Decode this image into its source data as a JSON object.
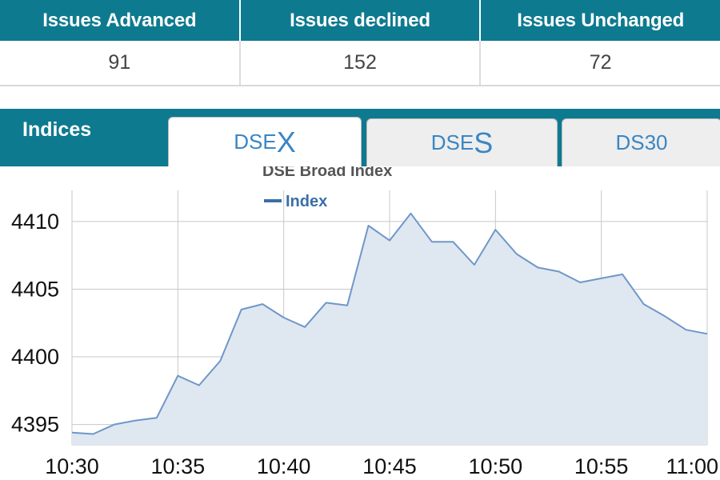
{
  "issues": {
    "headers": [
      "Issues Advanced",
      "Issues declined",
      "Issues Unchanged"
    ],
    "values": [
      "91",
      "152",
      "72"
    ]
  },
  "indices": {
    "title": "Indices",
    "tabs": [
      {
        "prefix": "DSE",
        "suffix": "X",
        "active": true
      },
      {
        "prefix": "DSE",
        "suffix": "S",
        "active": false
      },
      {
        "prefix": "DS30",
        "suffix": "",
        "active": false
      }
    ]
  },
  "colors": {
    "header_bg": "#0e7a8f",
    "line": "#6f97c8",
    "area": "#dfe7f1",
    "tab_text": "#3a86c4"
  },
  "chart_data": {
    "type": "area",
    "title": "DSE Broad Index",
    "series": [
      {
        "name": "Index",
        "x": [
          "10:30",
          "10:31",
          "10:32",
          "10:33",
          "10:34",
          "10:35",
          "10:36",
          "10:37",
          "10:38",
          "10:39",
          "10:40",
          "10:41",
          "10:42",
          "10:43",
          "10:44",
          "10:45",
          "10:46",
          "10:47",
          "10:48",
          "10:49",
          "10:50",
          "10:51",
          "10:52",
          "10:53",
          "10:54",
          "10:55",
          "10:56",
          "10:57",
          "10:58",
          "10:59",
          "11:00"
        ],
        "values": [
          4394.4,
          4394.3,
          4395.0,
          4395.3,
          4395.5,
          4398.6,
          4397.9,
          4399.7,
          4403.5,
          4403.9,
          4402.9,
          4402.2,
          4404.0,
          4403.8,
          4409.7,
          4408.6,
          4410.6,
          4408.5,
          4408.5,
          4406.8,
          4409.4,
          4407.6,
          4406.6,
          4406.3,
          4405.5,
          4405.8,
          4406.1,
          4403.9,
          4403.0,
          4402.0,
          4401.7
        ]
      }
    ],
    "x_ticks": [
      "10:30",
      "10:35",
      "10:40",
      "10:45",
      "10:50",
      "10:55",
      "11:00"
    ],
    "y_ticks": [
      4395,
      4400,
      4405,
      4410
    ],
    "ylim": [
      4393.5,
      4412.3
    ],
    "xlabel": "",
    "ylabel": "",
    "grid": true,
    "legend": "top-left"
  }
}
